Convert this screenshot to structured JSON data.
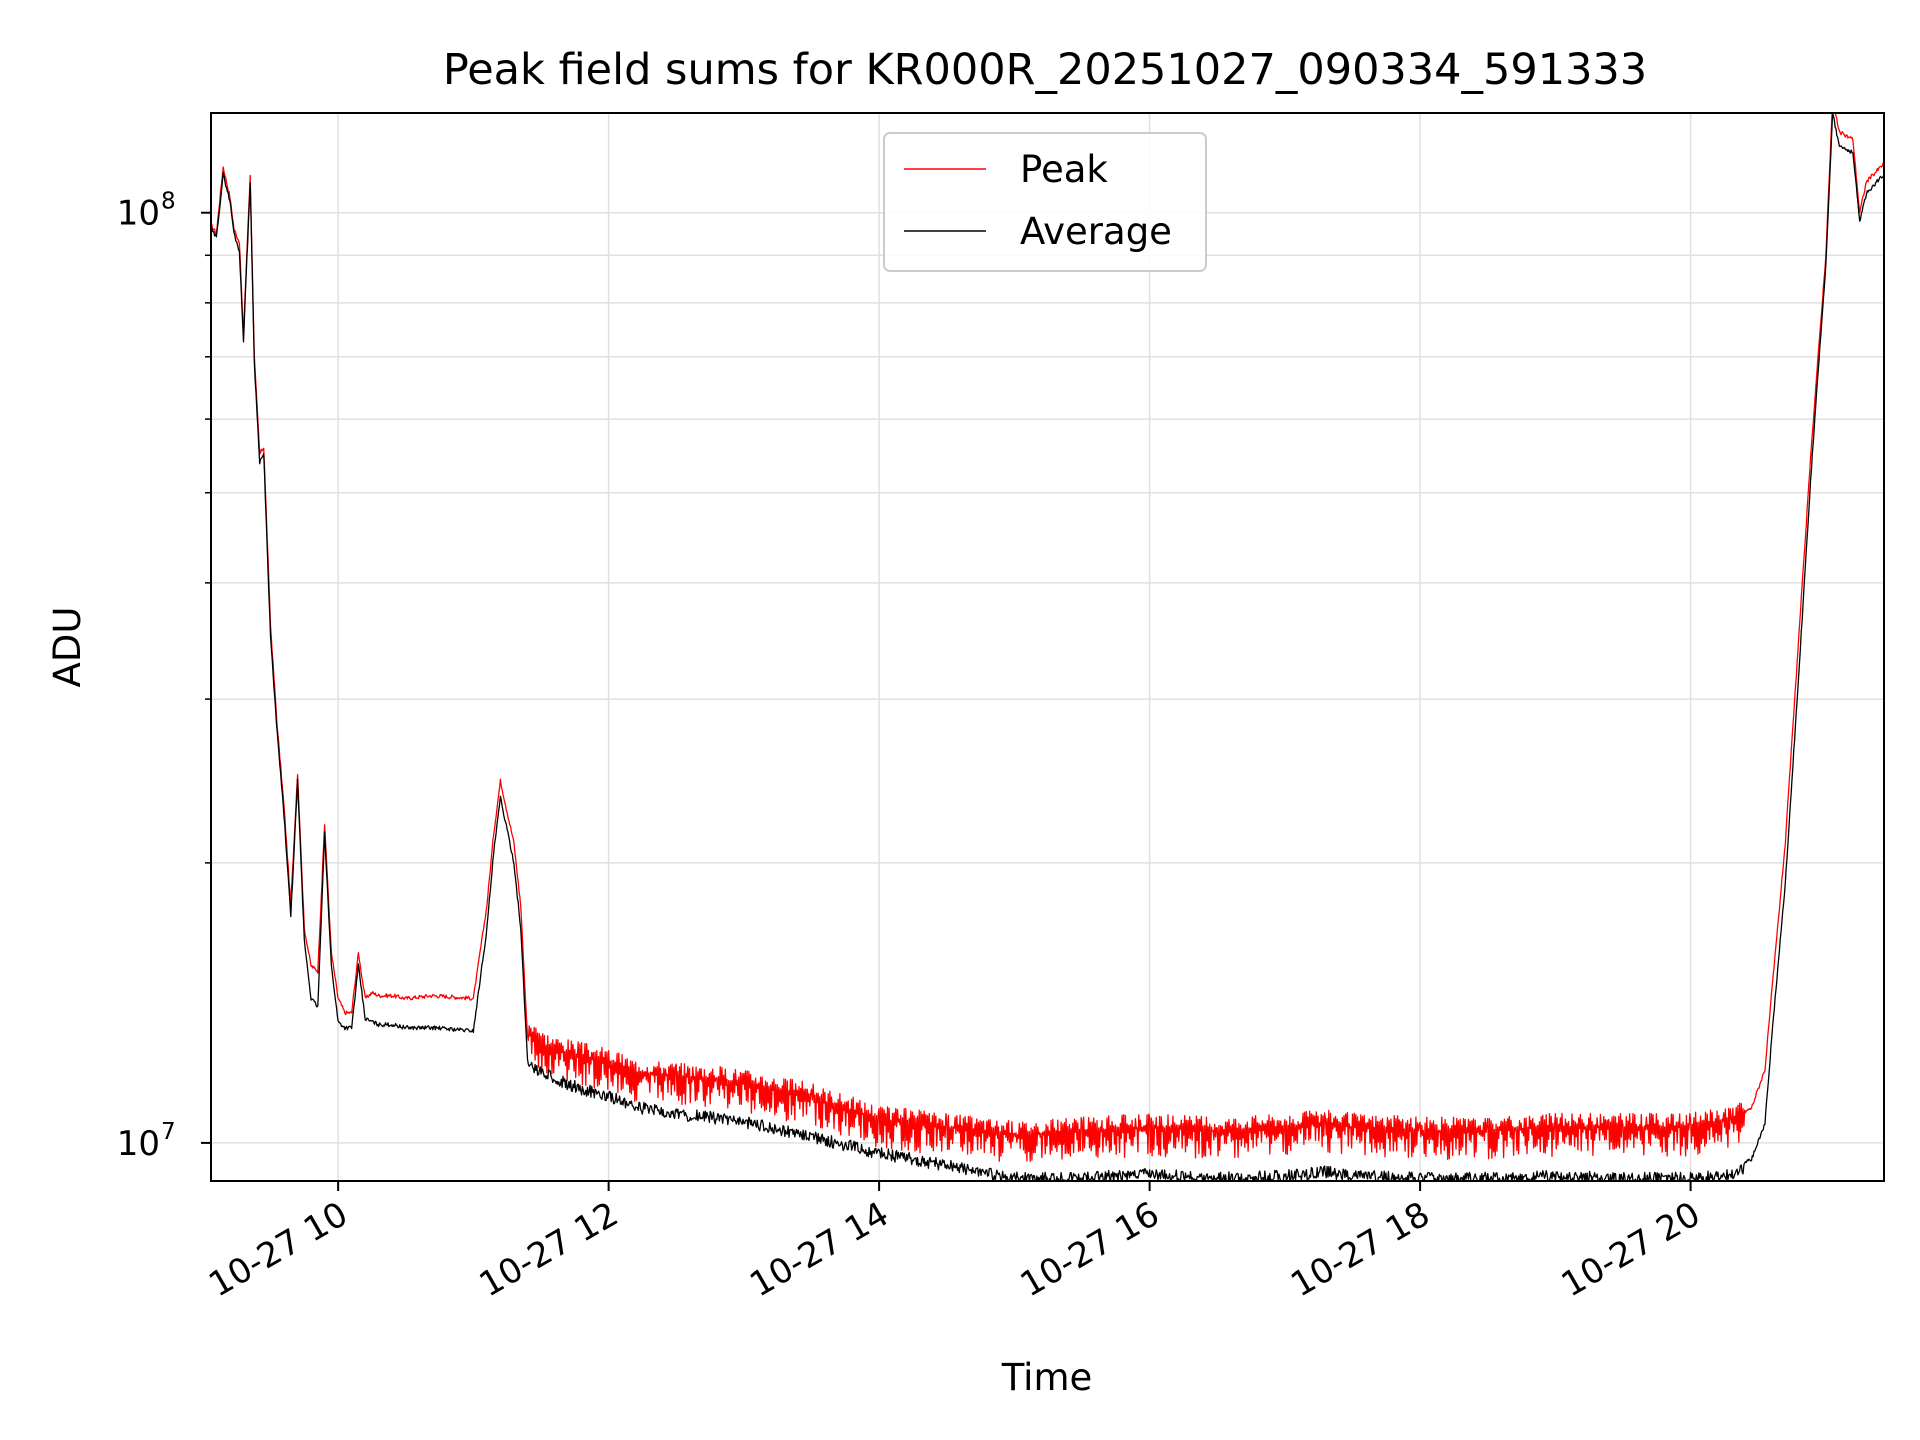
{
  "chart_data": {
    "type": "line",
    "title": "Peak field sums for KR000R_20251027_090334_591333",
    "xlabel": "Time",
    "ylabel": "ADU",
    "yscale": "log",
    "xlim": [
      9.06,
      21.43
    ],
    "ylim": [
      9100000,
      128000000
    ],
    "grid": true,
    "legend_position": "top-center",
    "x_ticks": [
      {
        "value": 10,
        "label": "10-27 10"
      },
      {
        "value": 12,
        "label": "10-27 12"
      },
      {
        "value": 14,
        "label": "10-27 14"
      },
      {
        "value": 16,
        "label": "10-27 16"
      },
      {
        "value": 18,
        "label": "10-27 18"
      },
      {
        "value": 20,
        "label": "10-27 20"
      }
    ],
    "y_major_ticks": [
      {
        "value": 10000000,
        "base": "10",
        "exp": "7"
      },
      {
        "value": 100000000,
        "base": "10",
        "exp": "8"
      }
    ],
    "y_minor_ticks": [
      20000000,
      30000000,
      40000000,
      50000000,
      60000000,
      70000000,
      80000000,
      90000000
    ],
    "x": [
      9.06,
      9.1,
      9.15,
      9.2,
      9.23,
      9.27,
      9.3,
      9.35,
      9.38,
      9.42,
      9.45,
      9.5,
      9.55,
      9.6,
      9.65,
      9.7,
      9.75,
      9.8,
      9.85,
      9.9,
      9.95,
      10.0,
      10.05,
      10.1,
      10.15,
      10.2,
      10.25,
      10.3,
      10.4,
      10.5,
      10.7,
      11.0,
      11.1,
      11.15,
      11.2,
      11.3,
      11.35,
      11.4,
      11.45,
      11.5,
      11.6,
      11.8,
      12.0,
      12.2,
      12.5,
      12.8,
      13.0,
      13.5,
      14.0,
      14.5,
      15.0,
      15.5,
      16.0,
      16.5,
      17.0,
      17.3,
      17.5,
      18.0,
      18.5,
      19.0,
      19.5,
      20.0,
      20.3,
      20.45,
      20.55,
      20.6,
      20.7,
      20.8,
      20.9,
      21.0,
      21.05,
      21.1,
      21.2,
      21.25,
      21.3,
      21.43
    ],
    "series": [
      {
        "name": "Peak",
        "color": "#ff0000",
        "values": [
          97000000,
          95000000,
          112000000,
          104000000,
          96000000,
          93000000,
          74000000,
          110000000,
          70000000,
          55000000,
          56000000,
          36000000,
          28000000,
          23000000,
          18000000,
          25000000,
          17000000,
          15500000,
          15300000,
          22000000,
          16000000,
          14300000,
          13800000,
          13800000,
          16000000,
          14300000,
          14500000,
          14400000,
          14400000,
          14300000,
          14400000,
          14300000,
          18000000,
          21500000,
          24500000,
          21000000,
          18000000,
          13000000,
          13200000,
          12800000,
          12600000,
          12400000,
          12200000,
          11900000,
          11800000,
          11700000,
          11600000,
          11200000,
          10600000,
          10400000,
          10200000,
          10300000,
          10400000,
          10300000,
          10400000,
          10500000,
          10400000,
          10300000,
          10300000,
          10400000,
          10400000,
          10400000,
          10600000,
          10900000,
          12000000,
          14500000,
          21000000,
          35000000,
          58000000,
          90000000,
          132000000,
          122000000,
          120000000,
          100000000,
          108000000,
          113000000
        ]
      },
      {
        "name": "Average",
        "color": "#000000",
        "values": [
          96000000,
          94000000,
          110000000,
          103000000,
          95000000,
          91000000,
          73000000,
          108000000,
          69000000,
          54000000,
          55000000,
          35000000,
          27500000,
          22500000,
          17500000,
          24500000,
          16500000,
          14300000,
          14000000,
          21500000,
          15500000,
          13500000,
          13300000,
          13300000,
          15500000,
          13600000,
          13500000,
          13400000,
          13400000,
          13300000,
          13300000,
          13200000,
          17000000,
          20500000,
          23500000,
          20000000,
          17000000,
          12300000,
          12200000,
          12100000,
          11900000,
          11600000,
          11400000,
          11100000,
          10900000,
          10800000,
          10700000,
          10300000,
          9900000,
          9600000,
          9300000,
          9300000,
          9400000,
          9300000,
          9350000,
          9450000,
          9350000,
          9300000,
          9300000,
          9350000,
          9300000,
          9300000,
          9400000,
          9600000,
          10500000,
          13000000,
          19000000,
          32000000,
          55000000,
          88000000,
          128000000,
          118000000,
          116000000,
          98000000,
          105000000,
          110000000
        ]
      }
    ]
  }
}
